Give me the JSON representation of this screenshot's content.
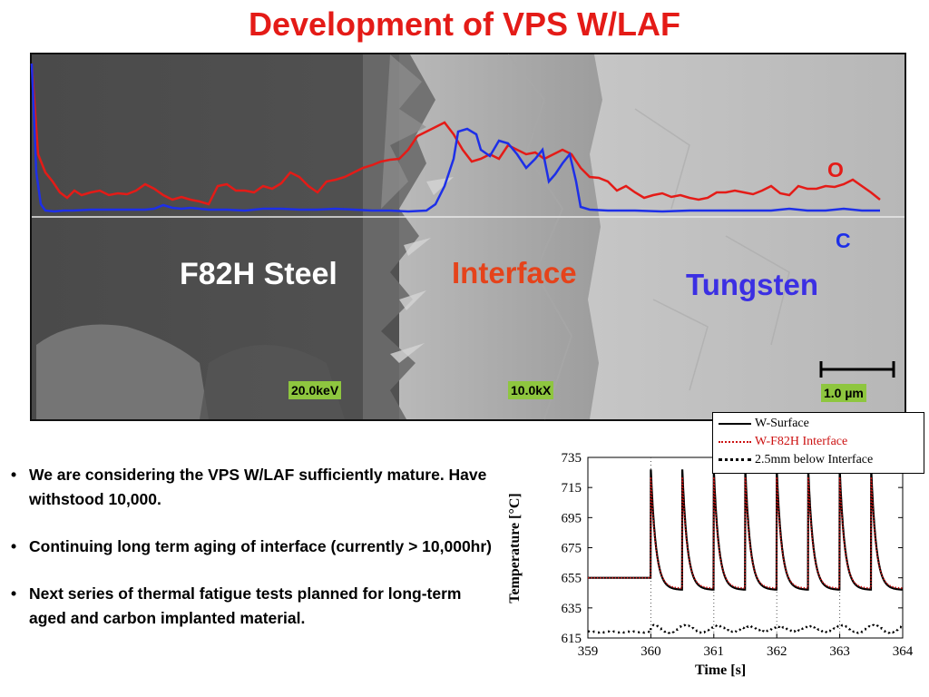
{
  "slide": {
    "title": "Development of VPS W/LAF"
  },
  "micrograph": {
    "regions": {
      "steel": "F82H Steel",
      "interface": "Interface",
      "tungsten": "Tungsten"
    },
    "traces": [
      {
        "label": "O",
        "color": "#e41b17"
      },
      {
        "label": "C",
        "color": "#1d2fe8"
      }
    ],
    "info": {
      "voltage": "20.0keV",
      "magnification": "10.0kX",
      "scale": "1.0 µm"
    }
  },
  "bullets": [
    "We are considering the VPS W/LAF sufficiently mature.  Have withstood 10,000.",
    "Continuing long term aging of interface (currently > 10,000hr)",
    "Next series of thermal fatigue tests planned for long-term aged and carbon implanted material."
  ],
  "chart_data": {
    "type": "line",
    "xlabel": "Time [s]",
    "ylabel": "Temperature [°C]",
    "xlim": [
      359,
      364
    ],
    "ylim": [
      615,
      735
    ],
    "xticks": [
      359,
      360,
      361,
      362,
      363,
      364
    ],
    "yticks": [
      615,
      635,
      655,
      675,
      695,
      715,
      735
    ],
    "grid": "dotted vertical lines at integer seconds",
    "legend_position": "top-right, above plot",
    "pulse_times": [
      360.0,
      360.5,
      361.0,
      361.5,
      362.0,
      362.5,
      363.0,
      363.5
    ],
    "series": [
      {
        "name": "W-Surface",
        "color": "#000000",
        "style": "solid",
        "baseline": 655,
        "peak": 727,
        "trough": 647
      },
      {
        "name": "W-F82H Interface",
        "color": "#cc1111",
        "style": "dotted",
        "baseline": 655,
        "peak": 722,
        "trough": 648
      },
      {
        "name": "2.5mm below Interface",
        "color": "#000000",
        "style": "dotted",
        "baseline": 619,
        "peak": 623,
        "trough": 619
      }
    ]
  }
}
